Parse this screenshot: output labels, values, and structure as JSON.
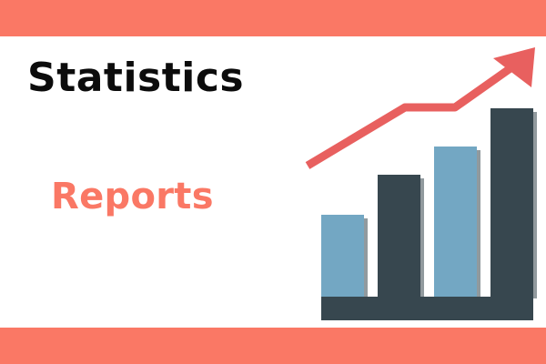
{
  "colors": {
    "band": "#fa7865",
    "headline": "#0c0c0c",
    "subheadline": "#fa7865",
    "arrow": "#e8605f",
    "bar_dark": "#37474f",
    "bar_light": "#73a7c3",
    "base": "#37474f"
  },
  "headline": "Statistics",
  "subheadline": "Reports",
  "illustration": {
    "icon": "rising-bar-chart-with-upward-arrow",
    "bar_levels": [
      0.42,
      0.62,
      0.76,
      0.95
    ],
    "bar_tones": [
      "light",
      "dark",
      "light",
      "dark"
    ]
  }
}
